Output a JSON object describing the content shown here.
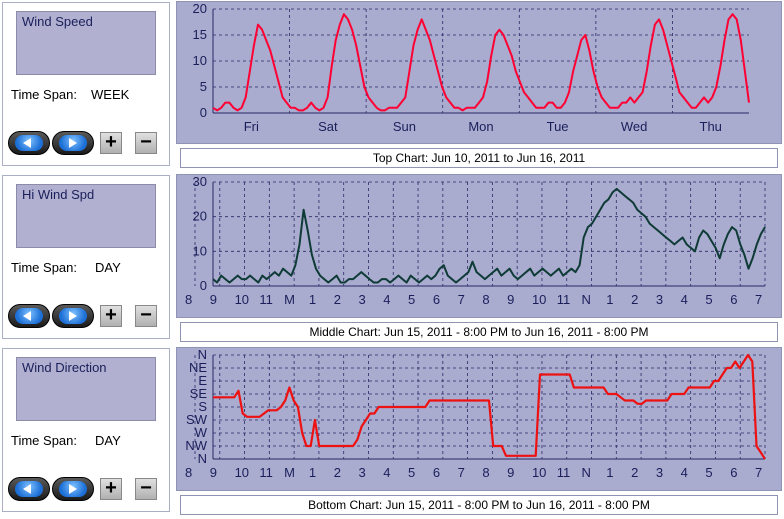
{
  "panels": [
    {
      "selector": "Wind Speed",
      "time_span_label": "Time Span:",
      "time_span": "WEEK"
    },
    {
      "selector": "Hi Wind Spd",
      "time_span_label": "Time Span:",
      "time_span": "DAY"
    },
    {
      "selector": "Wind Direction",
      "time_span_label": "Time Span:",
      "time_span": "DAY"
    }
  ],
  "controls": {
    "prev": "previous-icon",
    "next": "next-icon",
    "plus": "+",
    "minus": "−"
  },
  "captions": {
    "top": "Top Chart:  Jun 10, 2011  to  Jun 16, 2011",
    "middle": "Middle Chart:  Jun 15, 2011 - 8:00 PM  to  Jun 16, 2011 - 8:00 PM",
    "bottom": "Bottom Chart:  Jun 15, 2011 - 8:00 PM  to  Jun 16, 2011 - 8:00 PM"
  },
  "colors": {
    "plot_bg": "#a9abcf",
    "speed": "#ff0033",
    "hi_speed": "#0e3b36",
    "direction": "#ee1111",
    "grid": "#2a2a66"
  },
  "chart_data": [
    {
      "type": "line",
      "ylim": [
        0,
        20
      ],
      "yticks": [
        "0",
        "5",
        "10",
        "15",
        "20"
      ],
      "xticks": [
        "Fri",
        "Sat",
        "Sun",
        "Mon",
        "Tue",
        "Wed",
        "Thu"
      ],
      "series": [
        {
          "values": [
            1,
            0.5,
            1,
            2,
            2,
            1,
            0.5,
            1,
            3,
            8,
            13,
            17,
            16,
            14,
            12,
            9,
            6,
            3,
            2,
            1,
            1,
            0.5,
            0.5,
            1,
            2,
            1,
            0.5,
            1,
            3,
            9,
            14,
            17,
            19,
            18,
            16,
            13,
            9,
            5,
            3,
            2,
            1,
            0.5,
            0.5,
            1,
            1,
            1,
            2,
            3,
            8,
            13,
            16,
            18,
            16,
            14,
            11,
            8,
            5,
            3,
            2,
            1,
            1,
            0.5,
            1,
            1,
            1,
            2,
            3,
            6,
            11,
            15,
            16,
            15,
            13,
            11,
            8,
            6,
            4,
            3,
            2,
            1,
            1,
            1,
            2,
            2,
            1,
            1,
            2,
            4,
            8,
            11,
            14,
            15,
            12,
            8,
            5,
            3,
            2,
            1,
            1,
            1,
            2,
            2,
            3,
            2,
            3,
            4,
            8,
            13,
            17,
            18,
            16,
            13,
            10,
            7,
            4,
            3,
            2,
            1,
            1,
            2,
            3,
            2,
            3,
            5,
            9,
            14,
            18,
            19,
            18,
            14,
            8,
            2
          ]
        }
      ]
    },
    {
      "type": "line",
      "ylim": [
        0,
        30
      ],
      "yticks": [
        "0",
        "10",
        "20",
        "30"
      ],
      "xticks": [
        "8",
        "9",
        "10",
        "11",
        "M",
        "1",
        "2",
        "3",
        "4",
        "5",
        "6",
        "7",
        "8",
        "9",
        "10",
        "11",
        "N",
        "1",
        "2",
        "3",
        "4",
        "5",
        "6",
        "7"
      ],
      "series": [
        {
          "values": [
            2,
            1,
            3,
            2,
            1,
            2,
            3,
            2,
            2,
            3,
            2,
            1,
            3,
            2,
            3,
            4,
            3,
            5,
            4,
            3,
            6,
            12,
            22,
            16,
            9,
            5,
            3,
            2,
            1,
            2,
            3,
            1,
            1,
            2,
            2,
            3,
            4,
            3,
            2,
            1,
            1,
            2,
            2,
            1,
            2,
            3,
            2,
            1,
            3,
            2,
            1,
            2,
            3,
            2,
            3,
            5,
            6,
            3,
            2,
            1,
            2,
            3,
            4,
            7,
            4,
            3,
            2,
            3,
            4,
            5,
            3,
            4,
            5,
            3,
            2,
            3,
            4,
            5,
            3,
            4,
            5,
            4,
            3,
            4,
            5,
            3,
            4,
            5,
            4,
            6,
            14,
            17,
            18,
            20,
            22,
            24,
            25,
            27,
            28,
            27,
            26,
            25,
            24,
            22,
            21,
            20,
            18,
            17,
            16,
            15,
            14,
            13,
            12,
            13,
            14,
            12,
            11,
            10,
            14,
            16,
            15,
            13,
            11,
            8,
            12,
            15,
            17,
            16,
            12,
            9,
            5,
            8,
            12,
            15,
            17
          ]
        }
      ]
    },
    {
      "type": "line",
      "ylim": [
        0,
        16
      ],
      "yticks": [
        "N",
        "NW",
        "W",
        "SW",
        "S",
        "SE",
        "E",
        "NE",
        "N"
      ],
      "xticks": [
        "8",
        "9",
        "10",
        "11",
        "M",
        "1",
        "2",
        "3",
        "4",
        "5",
        "6",
        "7",
        "8",
        "9",
        "10",
        "11",
        "N",
        "1",
        "2",
        "3",
        "4",
        "5",
        "6",
        "7"
      ],
      "series": [
        {
          "values": [
            9.5,
            9.5,
            9.5,
            9.5,
            9.5,
            9.5,
            10.5,
            7,
            6.5,
            6.5,
            6.5,
            6.5,
            7,
            7.5,
            7.5,
            7.5,
            8,
            9,
            11,
            9,
            8,
            4,
            2,
            2,
            6,
            2,
            2,
            2,
            2,
            2,
            2,
            2,
            2,
            2,
            3,
            5,
            6,
            7,
            7,
            8,
            8,
            8,
            8,
            8,
            8,
            8,
            8,
            8,
            8,
            8,
            8,
            9,
            9,
            9,
            9,
            9,
            9,
            9,
            9,
            9,
            9,
            9,
            9,
            9,
            9,
            9,
            2,
            2,
            2,
            0.5,
            0.5,
            0.5,
            0.5,
            0.5,
            0.5,
            0.5,
            0.5,
            13,
            13,
            13,
            13,
            13,
            13,
            13,
            13,
            11,
            11,
            11,
            11,
            11,
            11,
            11,
            11,
            10,
            10,
            10,
            9.5,
            9,
            9,
            9,
            8.5,
            8.5,
            9,
            9,
            9,
            9,
            9,
            9,
            10,
            10,
            10,
            10,
            11,
            11,
            11,
            11,
            11,
            11,
            12,
            12,
            13,
            14,
            14,
            15,
            14,
            15,
            16,
            15,
            2,
            1,
            0
          ]
        }
      ]
    }
  ]
}
